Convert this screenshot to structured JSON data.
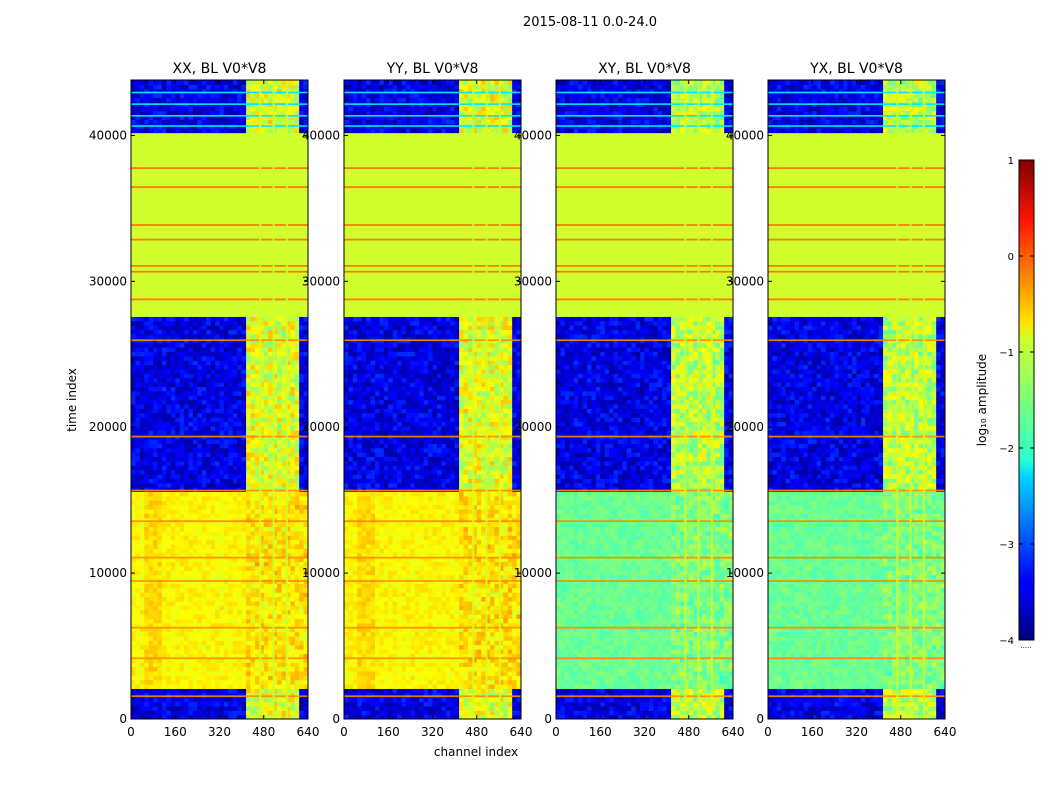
{
  "chart_data": {
    "type": "heatmap",
    "title": "2015-08-11 0.0-24.0",
    "xlabel": "channel index",
    "ylabel": "time index",
    "xlim": [
      0,
      640
    ],
    "ylim": [
      0,
      43800
    ],
    "x_ticks": [
      "0",
      "160",
      "320",
      "480",
      "640"
    ],
    "y_ticks": [
      "0",
      "10000",
      "20000",
      "30000",
      "40000"
    ],
    "panels": [
      {
        "title": "XX, BL V0*V8",
        "upper_background_level": -3.5,
        "lower_level": -0.85
      },
      {
        "title": "YY, BL V0*V8",
        "upper_background_level": -3.5,
        "lower_level": -0.85
      },
      {
        "title": "XY, BL V0*V8",
        "upper_background_level": -3.5,
        "lower_level": -1.6
      },
      {
        "title": "YX, BL V0*V8",
        "upper_background_level": -3.5,
        "lower_level": -1.6
      }
    ],
    "flagged_level": -1.1,
    "flagged_time_ranges": [
      [
        27500,
        40000
      ]
    ],
    "rfi_channel_range": [
      408,
      600
    ],
    "colorbar": {
      "label": "log₁₀ amplitude",
      "range": [
        -4,
        1
      ],
      "ticks": [
        "1",
        "0",
        "−1",
        "−2",
        "−3",
        "−4"
      ],
      "colormap": "jet",
      "extension_marker": "....."
    }
  }
}
